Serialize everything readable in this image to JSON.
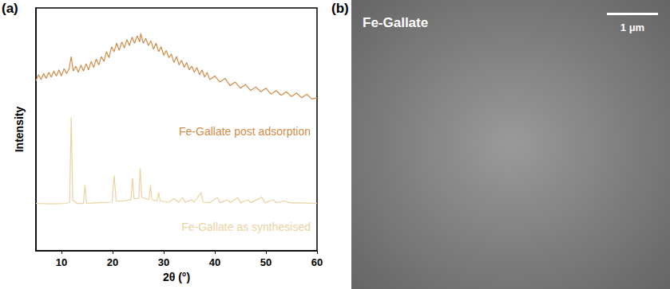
{
  "chart_data": {
    "type": "line",
    "panel_label": "(a)",
    "x_label": "2θ (°)",
    "y_label": "Intensity",
    "xlim": [
      5,
      60
    ],
    "xticks": [
      10,
      20,
      30,
      40,
      50,
      60
    ],
    "ylim": [
      0,
      100
    ],
    "tick_labels": "x",
    "grid": false,
    "series": [
      {
        "name": "Fe-Gallate post adsorption",
        "color": "#d08c48",
        "x": [
          5,
          5.5,
          6,
          6.5,
          7,
          7.5,
          8,
          8.5,
          9,
          9.5,
          10,
          10.5,
          11,
          11.5,
          11.9,
          12.3,
          12.8,
          13.3,
          13.8,
          14.3,
          14.8,
          15.3,
          15.8,
          16.3,
          16.8,
          17.3,
          17.8,
          18.3,
          18.8,
          19.3,
          19.8,
          20.3,
          20.8,
          21.3,
          21.8,
          22.3,
          22.8,
          23.3,
          23.8,
          24.3,
          24.8,
          25.3,
          25.5,
          26,
          26.5,
          27,
          27.5,
          28,
          28.5,
          29,
          29.5,
          30,
          30.5,
          31,
          31.5,
          32,
          32.5,
          33,
          33.5,
          34,
          34.5,
          35,
          35.5,
          36,
          36.5,
          37,
          37.5,
          38,
          38.5,
          39,
          40,
          41,
          42,
          43,
          44,
          45,
          46,
          47,
          48,
          49,
          50,
          51,
          52,
          53,
          54,
          55,
          56,
          57,
          58,
          59,
          60
        ],
        "values": [
          70,
          72.5,
          70.5,
          73,
          71,
          73.5,
          71.5,
          74,
          72,
          74.5,
          72,
          75,
          73,
          75,
          80,
          74,
          76,
          73.5,
          76.5,
          74,
          77,
          74.5,
          78,
          75.5,
          79,
          76.5,
          80,
          78,
          82,
          79.5,
          84,
          82,
          85.5,
          82.5,
          86,
          83.5,
          87,
          84.5,
          88,
          85.5,
          88.5,
          86,
          89.5,
          85.5,
          87.5,
          84.5,
          86.5,
          83,
          85.5,
          82,
          84,
          80.5,
          82.5,
          79.5,
          81,
          77.5,
          80,
          76.5,
          78.5,
          75.5,
          77.5,
          74.5,
          76,
          73.5,
          75.5,
          72.5,
          74.5,
          71.5,
          73.5,
          70.5,
          72,
          69.5,
          71,
          68,
          69.5,
          67,
          68.5,
          66,
          67.5,
          65.5,
          67,
          64.5,
          66,
          64,
          65.5,
          63.5,
          65,
          63,
          64.5,
          62.5,
          63
        ]
      },
      {
        "name": "Fe-Gallate as synthesised",
        "color": "#ead3a0",
        "x": [
          5,
          8,
          11,
          11.6,
          11.9,
          12.2,
          13,
          14.3,
          14.6,
          14.9,
          17,
          19.9,
          20.3,
          20.7,
          22,
          23.6,
          23.9,
          24.2,
          25.1,
          25.4,
          25.7,
          27.1,
          27.4,
          27.7,
          28.7,
          29,
          29.3,
          31,
          32,
          33,
          33.7,
          34.2,
          35.5,
          36,
          37.3,
          37.7,
          39,
          40.5,
          41,
          42.5,
          43,
          44.5,
          45,
          46.5,
          47,
          49.2,
          49.8,
          51.5,
          52,
          53.5,
          55,
          57,
          60
        ],
        "values": [
          19.5,
          19.3,
          19.5,
          20,
          55,
          21,
          19.5,
          19.5,
          27,
          19.5,
          19.8,
          20,
          31,
          20.5,
          20.5,
          21,
          30,
          21.5,
          21.5,
          34,
          22,
          21,
          27,
          21,
          20.5,
          24,
          20.5,
          20,
          21.5,
          20,
          22,
          20,
          21,
          20,
          24,
          20,
          19.8,
          22,
          19.8,
          21,
          19.8,
          22,
          19.8,
          21,
          19.8,
          22,
          19.8,
          21,
          19.8,
          20.5,
          19.7,
          19.7,
          19.5
        ]
      }
    ]
  },
  "image_panel": {
    "panel_label": "(b)",
    "title": "Fe-Gallate",
    "scale_bar": "1 μm"
  }
}
